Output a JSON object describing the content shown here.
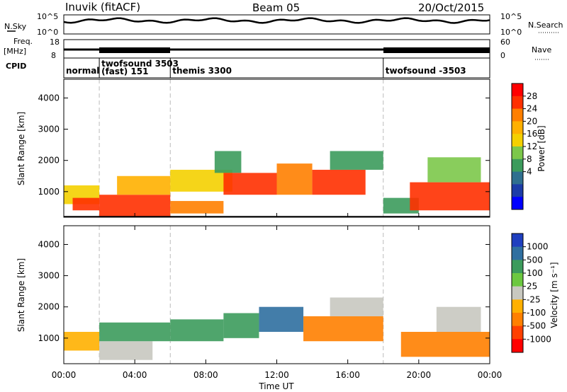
{
  "header": {
    "station": "Inuvik (fitACF)",
    "beam": "Beam 05",
    "date": "20/Oct/2015"
  },
  "nsky_panel": {
    "left_label": "N.Sky",
    "right_label": "N.Search",
    "yticks_left": [
      "10^5",
      "10^0"
    ],
    "yticks_right": [
      "10^5",
      "10^0"
    ]
  },
  "freq_panel": {
    "left_label": "Freq.",
    "left_unit": "[MHz]",
    "right_label": "Nave",
    "yticks_left": [
      "18",
      "8"
    ],
    "yticks_right": [
      "60",
      "0"
    ]
  },
  "cpid": {
    "label": "CPID",
    "segments": [
      {
        "name": "normal",
        "start_h": 0,
        "end_h": 2,
        "text": "normal"
      },
      {
        "name": "twofsound",
        "start_h": 2,
        "end_h": 6,
        "text": "twofsound 3503",
        "sub": "(fast) 151"
      },
      {
        "name": "themis",
        "start_h": 6,
        "end_h": 18,
        "text": "themis 3300"
      },
      {
        "name": "twofsound2",
        "start_h": 18,
        "end_h": 24,
        "text": "twofsound -3503"
      }
    ]
  },
  "power_panel": {
    "ylabel": "Slant Range [km]",
    "yticks": [
      "4000",
      "3000",
      "2000",
      "1000"
    ],
    "colorbar_label": "Power [dB]",
    "colorbar_ticks": [
      "28",
      "24",
      "20",
      "16",
      "12",
      "8",
      "4"
    ],
    "colorbar_colors": [
      "#ff0000",
      "#ff3000",
      "#ff7f00",
      "#ffb000",
      "#f4d000",
      "#7cc84a",
      "#3c9b5c",
      "#2f6f8f",
      "#1c3ca8",
      "#0000ff"
    ]
  },
  "velocity_panel": {
    "ylabel": "Slant Range [km]",
    "yticks": [
      "4000",
      "3000",
      "2000",
      "1000"
    ],
    "colorbar_label": "Velocity [m s⁻¹]",
    "colorbar_ticks": [
      "1000",
      "500",
      "100",
      "25",
      "-25",
      "-100",
      "-500",
      "-1000"
    ],
    "colorbar_colors": [
      "#1f3fbf",
      "#2f6fa0",
      "#3c9b5c",
      "#6cc840",
      "#c8c8c0",
      "#ffb000",
      "#ff8000",
      "#ff4000",
      "#ff0000"
    ]
  },
  "xaxis": {
    "ticks": [
      "00:00",
      "04:00",
      "08:00",
      "12:00",
      "16:00",
      "20:00",
      "00:00"
    ],
    "label": "Time UT"
  },
  "chart_data": {
    "type": "heatmap",
    "x_range_hours": [
      0,
      24
    ],
    "y_range_km": [
      180,
      4600
    ],
    "x_tick_labels": [
      "00:00",
      "04:00",
      "08:00",
      "12:00",
      "16:00",
      "20:00",
      "00:00"
    ],
    "power_db": [
      {
        "t0": 0.0,
        "t1": 2.0,
        "r0": 600,
        "r1": 1200,
        "value": 20
      },
      {
        "t0": 0.5,
        "t1": 2.0,
        "r0": 400,
        "r1": 800,
        "value": 28
      },
      {
        "t0": 2.0,
        "t1": 6.0,
        "r0": 200,
        "r1": 900,
        "value": 28
      },
      {
        "t0": 3.0,
        "t1": 6.0,
        "r0": 900,
        "r1": 1500,
        "value": 22
      },
      {
        "t0": 6.0,
        "t1": 9.0,
        "r0": 300,
        "r1": 700,
        "value": 26
      },
      {
        "t0": 6.0,
        "t1": 9.5,
        "r0": 1000,
        "r1": 1700,
        "value": 18
      },
      {
        "t0": 8.5,
        "t1": 10.0,
        "r0": 1600,
        "r1": 2300,
        "value": 14
      },
      {
        "t0": 9.0,
        "t1": 12.0,
        "r0": 900,
        "r1": 1600,
        "value": 28
      },
      {
        "t0": 12.0,
        "t1": 14.0,
        "r0": 900,
        "r1": 1900,
        "value": 26
      },
      {
        "t0": 14.0,
        "t1": 17.0,
        "r0": 900,
        "r1": 1700,
        "value": 28
      },
      {
        "t0": 15.0,
        "t1": 18.0,
        "r0": 1700,
        "r1": 2300,
        "value": 12
      },
      {
        "t0": 18.0,
        "t1": 20.0,
        "r0": 300,
        "r1": 800,
        "value": 12
      },
      {
        "t0": 19.5,
        "t1": 24.0,
        "r0": 400,
        "r1": 1300,
        "value": 28
      },
      {
        "t0": 20.5,
        "t1": 23.5,
        "r0": 1300,
        "r1": 2100,
        "value": 16
      }
    ],
    "velocity_ms": [
      {
        "t0": 0.0,
        "t1": 2.0,
        "r0": 600,
        "r1": 1200,
        "value": -100
      },
      {
        "t0": 2.0,
        "t1": 5.0,
        "r0": 300,
        "r1": 900,
        "value": 0
      },
      {
        "t0": 2.0,
        "t1": 6.0,
        "r0": 900,
        "r1": 1500,
        "value": 300
      },
      {
        "t0": 6.0,
        "t1": 9.0,
        "r0": 900,
        "r1": 1600,
        "value": 300
      },
      {
        "t0": 9.0,
        "t1": 11.0,
        "r0": 1000,
        "r1": 1800,
        "value": 300
      },
      {
        "t0": 11.0,
        "t1": 13.5,
        "r0": 1200,
        "r1": 2000,
        "value": 500
      },
      {
        "t0": 13.5,
        "t1": 18.0,
        "r0": 900,
        "r1": 1700,
        "value": -300
      },
      {
        "t0": 15.0,
        "t1": 18.0,
        "r0": 1700,
        "r1": 2300,
        "value": 0
      },
      {
        "t0": 19.0,
        "t1": 24.0,
        "r0": 400,
        "r1": 1200,
        "value": -300
      },
      {
        "t0": 21.0,
        "t1": 23.5,
        "r0": 1200,
        "r1": 2000,
        "value": 0
      }
    ]
  }
}
